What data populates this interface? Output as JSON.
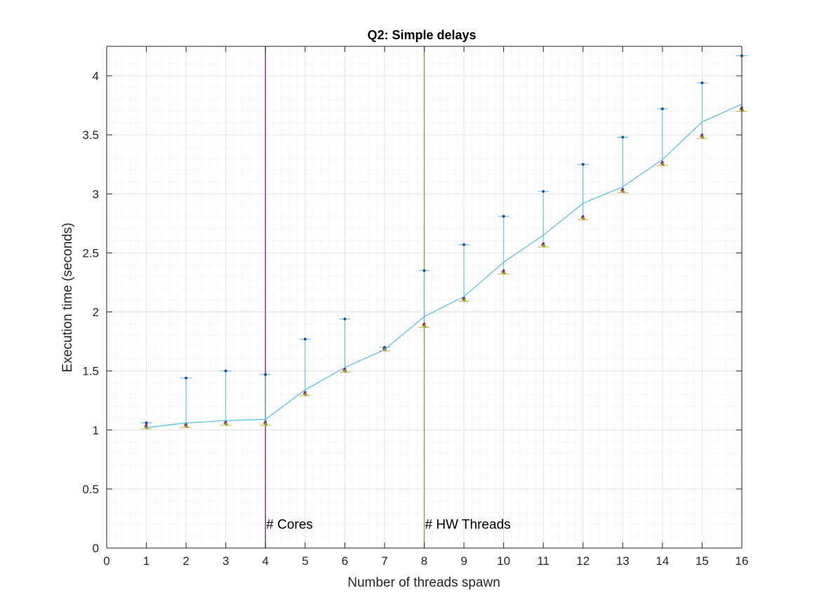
{
  "chart_data": {
    "type": "line",
    "title": "Q2: Simple delays",
    "xlabel": "Number of threads spawn",
    "ylabel": "Execution time (seconds)",
    "xlim": [
      0,
      16
    ],
    "ylim": [
      0,
      4.25
    ],
    "xticks": [
      0,
      1,
      2,
      3,
      4,
      5,
      6,
      7,
      8,
      9,
      10,
      11,
      12,
      13,
      14,
      15,
      16
    ],
    "yticks": [
      0,
      0.5,
      1,
      1.5,
      2,
      2.5,
      3,
      3.5,
      4
    ],
    "grid": true,
    "minor_grid": true,
    "series": [
      {
        "x": [
          1,
          2,
          3,
          4,
          5,
          6,
          7,
          8,
          9,
          10,
          11,
          12,
          13,
          14,
          15,
          16
        ],
        "mean": [
          1.02,
          1.06,
          1.08,
          1.09,
          1.34,
          1.53,
          1.68,
          1.96,
          2.13,
          2.42,
          2.65,
          2.92,
          3.06,
          3.29,
          3.61,
          3.76
        ],
        "min": [
          1.01,
          1.02,
          1.04,
          1.04,
          1.29,
          1.49,
          1.67,
          1.87,
          2.09,
          2.32,
          2.55,
          2.78,
          3.01,
          3.24,
          3.47,
          3.7
        ],
        "max": [
          1.06,
          1.44,
          1.5,
          1.47,
          1.77,
          1.94,
          1.7,
          2.35,
          2.57,
          2.81,
          3.02,
          3.25,
          3.48,
          3.72,
          3.94,
          4.17
        ],
        "color": "#4dbeee"
      }
    ],
    "vlines": [
      {
        "x": 4,
        "label": "# Cores",
        "color": "#7e2f8e"
      },
      {
        "x": 8,
        "label": "# HW Threads",
        "color": "#77ac30"
      }
    ]
  }
}
